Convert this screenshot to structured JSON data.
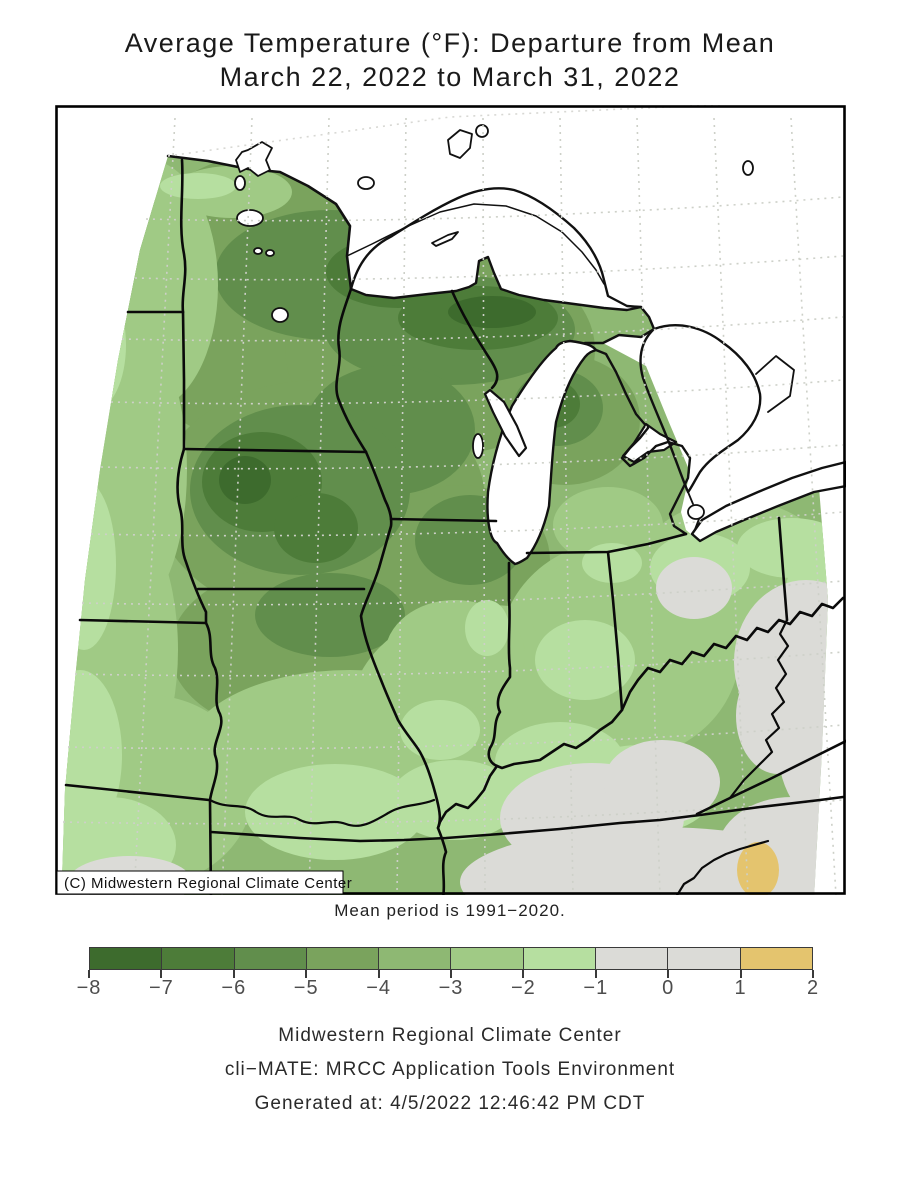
{
  "title": {
    "line1": "Average Temperature (°F): Departure from Mean",
    "line2": "March 22, 2022 to March 31, 2022"
  },
  "map": {
    "copyright": "(C) Midwestern Regional Climate Center",
    "note": "Mean period is 1991−2020."
  },
  "colorbar": {
    "cells": [
      "#3d6b2d",
      "#4d7c39",
      "#618e4c",
      "#7aa35d",
      "#8eb873",
      "#a0ca85",
      "#b6dfa0",
      "#dbdbd7",
      "#dbdbd7",
      "#e4c46e"
    ],
    "tick_labels": [
      "−8",
      "−7",
      "−6",
      "−5",
      "−4",
      "−3",
      "−2",
      "−1",
      "0",
      "1",
      "2"
    ]
  },
  "footer": {
    "line1": "Midwestern Regional Climate Center",
    "line2": "cli−MATE: MRCC Application Tools Environment",
    "line3": "Generated at: 4/5/2022 12:46:42 PM CDT"
  },
  "chart_data": {
    "type": "heatmap",
    "title": "Average Temperature (°F): Departure from Mean",
    "subtitle": "March 22, 2022 to March 31, 2022",
    "units": "°F departure from 1991−2020 mean",
    "legend_position": "bottom",
    "colorbar_range": [
      -8,
      2
    ],
    "colorbar_ticks": [
      -8,
      -7,
      -6,
      -5,
      -4,
      -3,
      -2,
      -1,
      0,
      1,
      2
    ],
    "legend_bins": [
      {
        "range": "-8 to -7",
        "color": "#3d6b2d"
      },
      {
        "range": "-7 to -6",
        "color": "#4d7c39"
      },
      {
        "range": "-6 to -5",
        "color": "#618e4c"
      },
      {
        "range": "-5 to -4",
        "color": "#7aa35d"
      },
      {
        "range": "-4 to -3",
        "color": "#8eb873"
      },
      {
        "range": "-3 to -2",
        "color": "#a0ca85"
      },
      {
        "range": "-2 to -1",
        "color": "#b6dfa0"
      },
      {
        "range": "-1 to 0",
        "color": "#dbdbd7"
      },
      {
        "range": "0 to 1",
        "color": "#dbdbd7"
      },
      {
        "range": "1 to 2",
        "color": "#e4c46e"
      }
    ],
    "qualitative_regions": [
      {
        "area": "NE Minnesota / N Wisconsin / Upper Michigan",
        "value": "-7 to -8"
      },
      {
        "area": "Western and central Iowa",
        "value": "-7 to -8"
      },
      {
        "area": "Minnesota, Wisconsin, Iowa, N Illinois, N Missouri, N Lower Michigan",
        "value": "-4 to -6"
      },
      {
        "area": "Dakotas, Nebraska, Kansas west edge",
        "value": "-2 to -4"
      },
      {
        "area": "S Missouri, S Illinois, Indiana, Ohio, Kentucky",
        "value": "-1 to -3"
      },
      {
        "area": "E Ohio / West Virginia, SW Kentucky, Tennessee strip",
        "value": "-1 to +1"
      },
      {
        "area": "SE corner near Tennessee/Virginia border",
        "value": "+1 to +2"
      }
    ]
  }
}
